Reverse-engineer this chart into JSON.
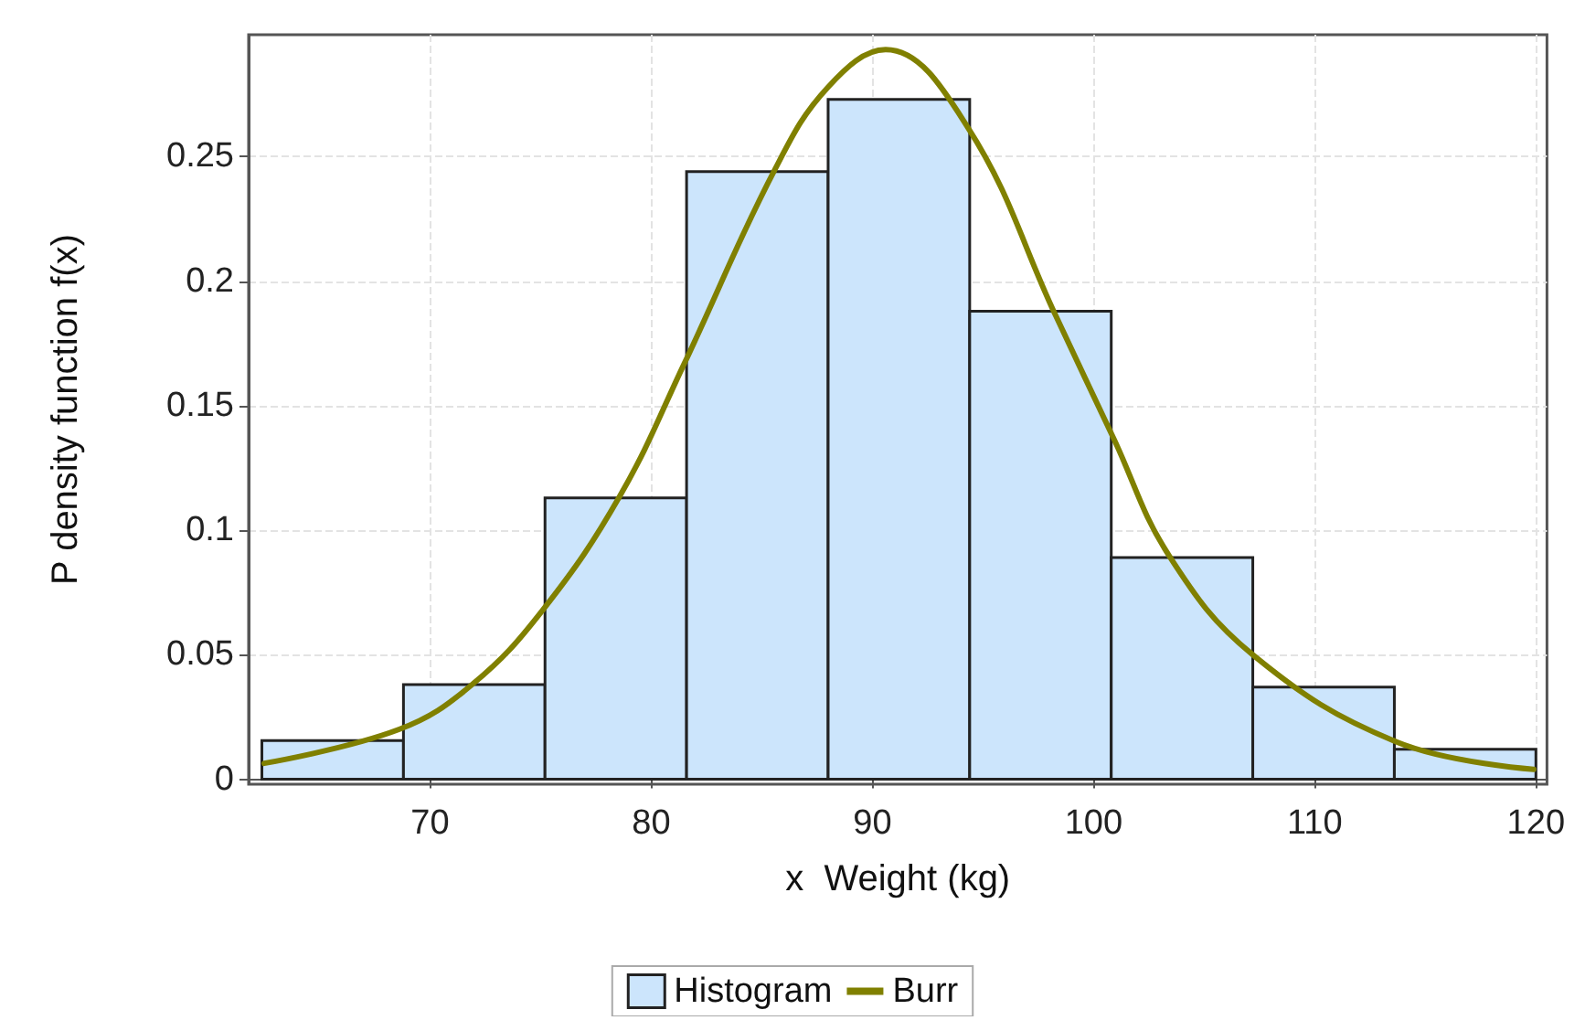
{
  "chart_data": {
    "type": "histogram",
    "xlabel": "x  Weight (kg)",
    "ylabel": "P density function f(x)",
    "xlim": [
      61.8,
      120.5
    ],
    "xticks": [
      70,
      80,
      90,
      100,
      110,
      120
    ],
    "ylim": [
      -0.002,
      0.299
    ],
    "yticks": [
      0,
      0.05,
      0.1,
      0.15,
      0.2,
      0.25
    ],
    "grid": true,
    "legend": "bottom",
    "marker": "none",
    "series": [
      {
        "name": "Histogram",
        "color": "#cce5fc",
        "bins": [
          62.4,
          68.8,
          75.2,
          81.6,
          88,
          94.4,
          100.8,
          107.2,
          113.6,
          120
        ],
        "values": [
          0.0155,
          0.038,
          0.113,
          0.244,
          0.273,
          0.188,
          0.089,
          0.037,
          0.012
        ]
      },
      {
        "type": "line",
        "name": "Burr",
        "color": "#808000",
        "x": [
          62.5,
          68.6,
          71.9,
          75.1,
          78.6,
          81.5,
          85.6,
          88,
          90.6,
          94.3,
          98.3,
          100.9,
          103.4,
          107.2,
          113.7,
          119.9
        ],
        "values": [
          0.0064,
          0.02,
          0.038,
          0.068,
          0.114,
          0.167,
          0.245,
          0.278,
          0.293,
          0.262,
          0.186,
          0.137,
          0.09,
          0.05,
          0.015,
          0.004
        ]
      }
    ]
  }
}
